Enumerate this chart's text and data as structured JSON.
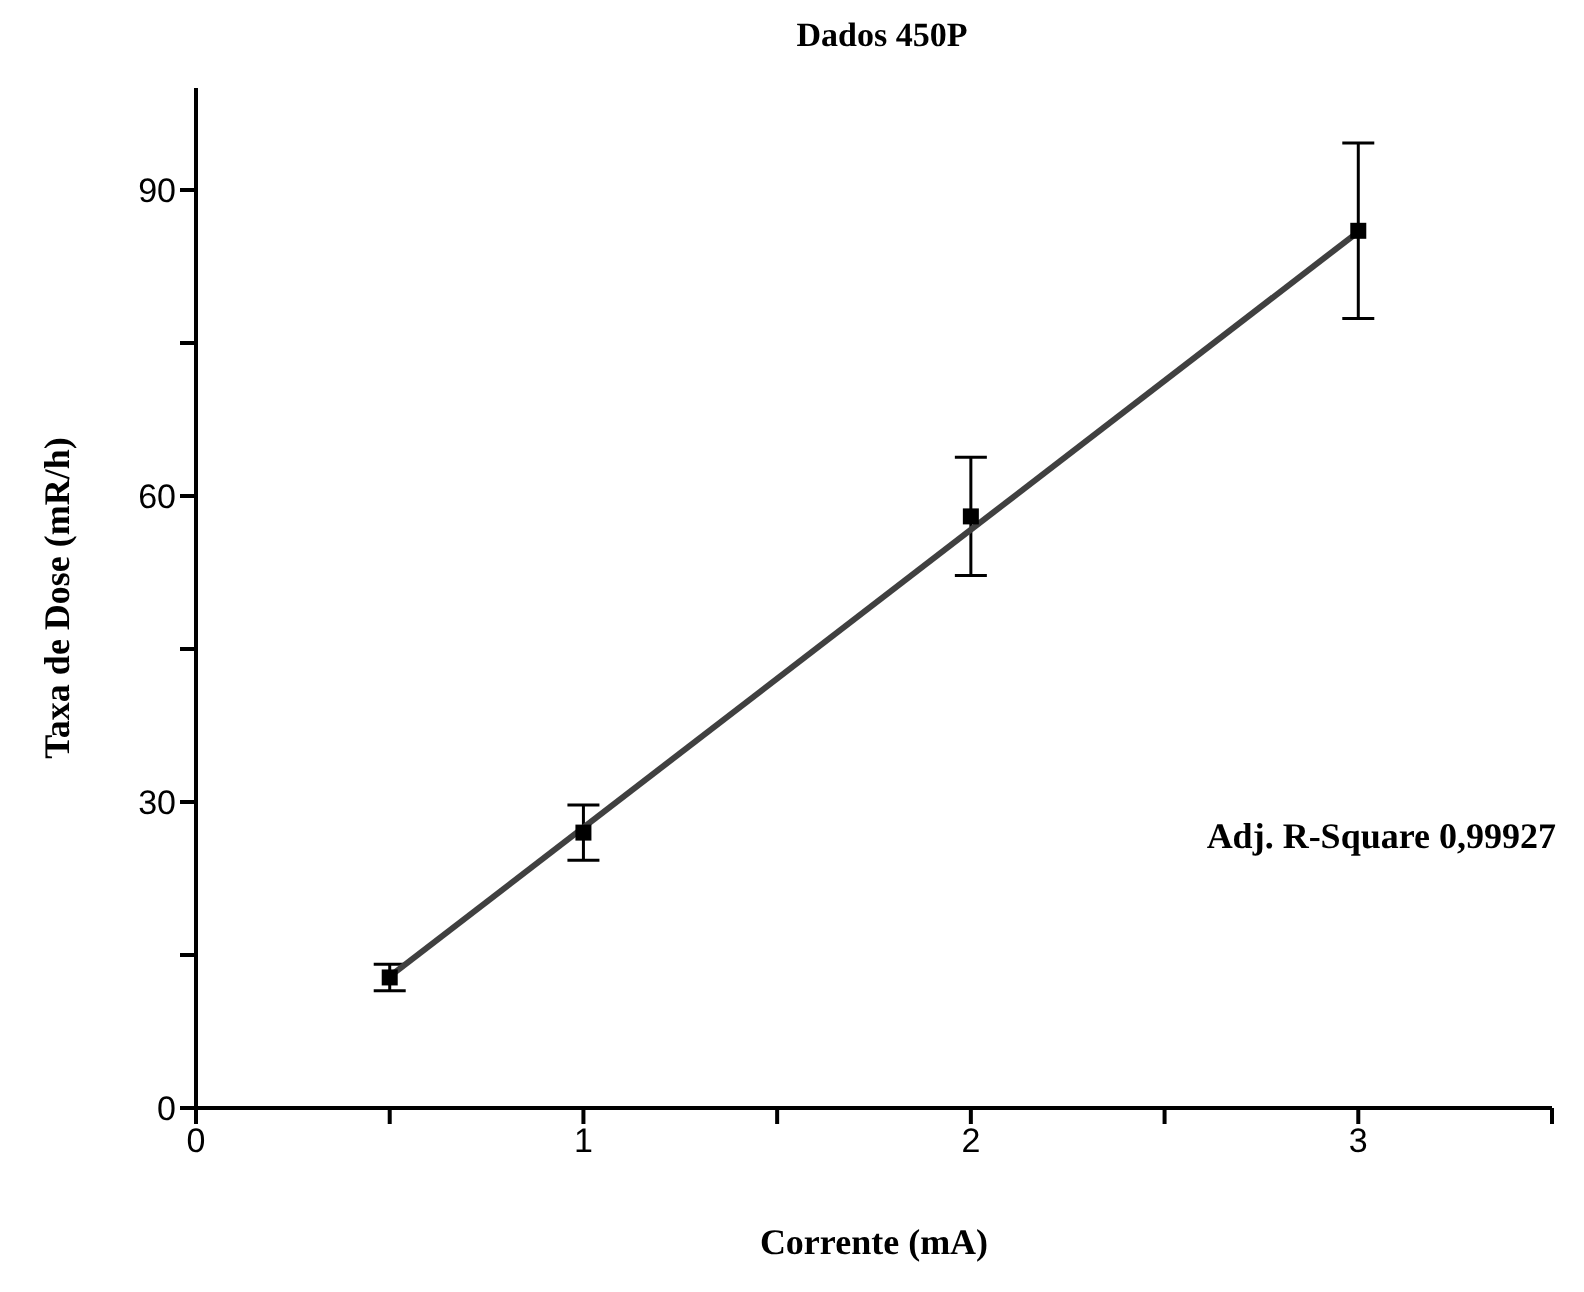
{
  "chart_data": {
    "type": "scatter",
    "title": "Dados 450P",
    "xlabel": "Corrente (mA)",
    "ylabel": "Taxa de Dose (mR/h)",
    "annotations": [
      "Adj. R-Square 0,99927"
    ],
    "marker": "square",
    "series": [
      {
        "color": "#000000",
        "x": [
          0.5,
          1,
          2,
          3
        ],
        "values": [
          12.8,
          27.0,
          58.0,
          86.0
        ],
        "errors": [
          1.3,
          2.7,
          5.8,
          8.6
        ]
      },
      {
        "type": "line",
        "color": "#404040",
        "marker": "none",
        "x": [
          0.5,
          3
        ],
        "values": [
          12.9,
          85.9
        ]
      }
    ],
    "xlim": [
      0,
      3.5
    ],
    "ylim": [
      0,
      100
    ],
    "xticks": [
      0,
      {
        "value": 0.5,
        "label": null
      },
      1,
      {
        "value": 1.5,
        "label": null
      },
      2,
      {
        "value": 2.5,
        "label": null
      },
      3,
      {
        "value": 3.5,
        "label": null
      }
    ],
    "yticks": [
      0,
      {
        "value": 15,
        "label": null
      },
      30,
      {
        "value": 45,
        "label": null
      },
      60,
      {
        "value": 75,
        "label": null
      },
      90
    ]
  }
}
